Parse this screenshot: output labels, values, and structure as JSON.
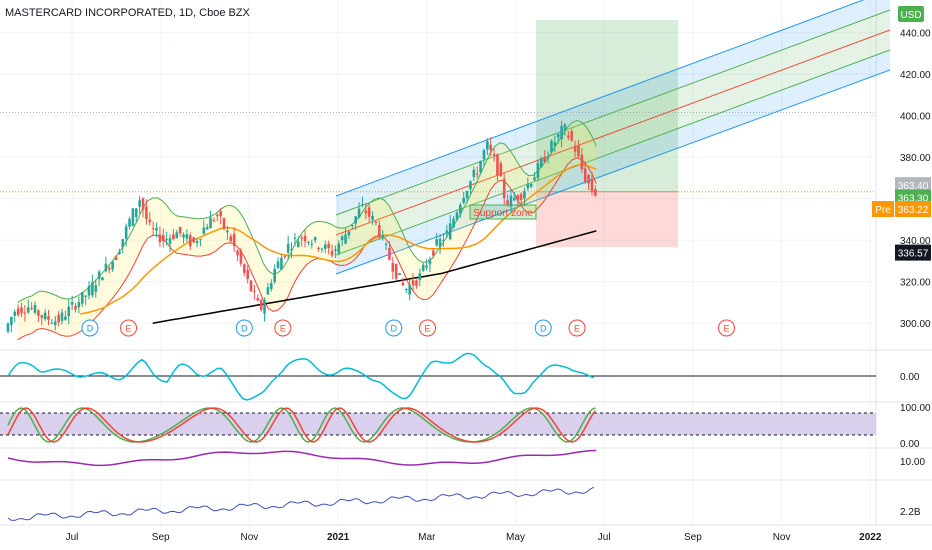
{
  "chart_data": {
    "type": "candlestick",
    "title": "MASTERCARD INCORPORATED, 1D, Cboe BZX",
    "currency": "USD",
    "y_ticks": [
      "300.00",
      "320.00",
      "340.00",
      "360.00",
      "380.00",
      "400.00",
      "420.00",
      "440.00"
    ],
    "ylim": [
      289,
      448
    ],
    "x_ticks": [
      {
        "label": "Jul",
        "bold": false
      },
      {
        "label": "Sep",
        "bold": false
      },
      {
        "label": "Nov",
        "bold": false
      },
      {
        "label": "2021",
        "bold": true
      },
      {
        "label": "Mar",
        "bold": false
      },
      {
        "label": "May",
        "bold": false
      },
      {
        "label": "Jul",
        "bold": false
      },
      {
        "label": "Sep",
        "bold": false
      },
      {
        "label": "Nov",
        "bold": false
      },
      {
        "label": "2022",
        "bold": true
      }
    ],
    "close_series": [
      {
        "t": 0,
        "v": 296
      },
      {
        "t": 4,
        "v": 306
      },
      {
        "t": 10,
        "v": 308
      },
      {
        "t": 16,
        "v": 303
      },
      {
        "t": 22,
        "v": 301
      },
      {
        "t": 28,
        "v": 308
      },
      {
        "t": 34,
        "v": 314
      },
      {
        "t": 40,
        "v": 324
      },
      {
        "t": 46,
        "v": 332
      },
      {
        "t": 52,
        "v": 350
      },
      {
        "t": 56,
        "v": 360
      },
      {
        "t": 60,
        "v": 346
      },
      {
        "t": 66,
        "v": 340
      },
      {
        "t": 72,
        "v": 344
      },
      {
        "t": 78,
        "v": 338
      },
      {
        "t": 84,
        "v": 348
      },
      {
        "t": 88,
        "v": 352
      },
      {
        "t": 94,
        "v": 340
      },
      {
        "t": 100,
        "v": 322
      },
      {
        "t": 106,
        "v": 306
      },
      {
        "t": 112,
        "v": 326
      },
      {
        "t": 118,
        "v": 338
      },
      {
        "t": 124,
        "v": 342
      },
      {
        "t": 130,
        "v": 338
      },
      {
        "t": 136,
        "v": 334
      },
      {
        "t": 142,
        "v": 344
      },
      {
        "t": 148,
        "v": 356
      },
      {
        "t": 154,
        "v": 348
      },
      {
        "t": 160,
        "v": 330
      },
      {
        "t": 166,
        "v": 316
      },
      {
        "t": 172,
        "v": 322
      },
      {
        "t": 178,
        "v": 336
      },
      {
        "t": 184,
        "v": 344
      },
      {
        "t": 190,
        "v": 362
      },
      {
        "t": 196,
        "v": 374
      },
      {
        "t": 200,
        "v": 386
      },
      {
        "t": 204,
        "v": 376
      },
      {
        "t": 208,
        "v": 358
      },
      {
        "t": 214,
        "v": 362
      },
      {
        "t": 220,
        "v": 372
      },
      {
        "t": 226,
        "v": 384
      },
      {
        "t": 232,
        "v": 394
      },
      {
        "t": 236,
        "v": 386
      },
      {
        "t": 240,
        "v": 372
      },
      {
        "t": 244,
        "v": 363
      }
    ],
    "last_price": "363.30",
    "price_labels": [
      {
        "text": "363.40",
        "kind": "gray"
      },
      {
        "text": "363.30",
        "kind": "green"
      },
      {
        "text": "363.22",
        "kind": "orange",
        "prefix": "Pre"
      },
      {
        "text": "336.57",
        "kind": "black"
      }
    ],
    "events": [
      {
        "t": 34,
        "letter": "D"
      },
      {
        "t": 50,
        "letter": "E"
      },
      {
        "t": 98,
        "letter": "D"
      },
      {
        "t": 114,
        "letter": "E"
      },
      {
        "t": 160,
        "letter": "D"
      },
      {
        "t": 174,
        "letter": "E"
      },
      {
        "t": 222,
        "letter": "D"
      },
      {
        "t": 236,
        "letter": "E"
      },
      {
        "t": 298,
        "letter": "E"
      }
    ],
    "annotation": "Support zone",
    "indicators": [
      {
        "labels": [
          "0.00"
        ]
      },
      {
        "labels": [
          "100.00",
          "0.00"
        ]
      },
      {
        "labels": [
          "10.00"
        ]
      },
      {
        "labels": [
          "2.2B"
        ]
      }
    ]
  },
  "colors": {
    "up": "#26a69a",
    "down": "#ef5350",
    "grid": "#f0f3fa",
    "text": "#131722",
    "channel_blue": "#2196f3",
    "channel_green": "#4caf50",
    "channel_red": "#f44336",
    "ma_orange": "#ff9800",
    "ma_black": "#000000",
    "cyan": "#00bcd4",
    "purple": "#9c27b0",
    "navy": "#3f51b5",
    "stoch_band": "#d1c4e9"
  }
}
